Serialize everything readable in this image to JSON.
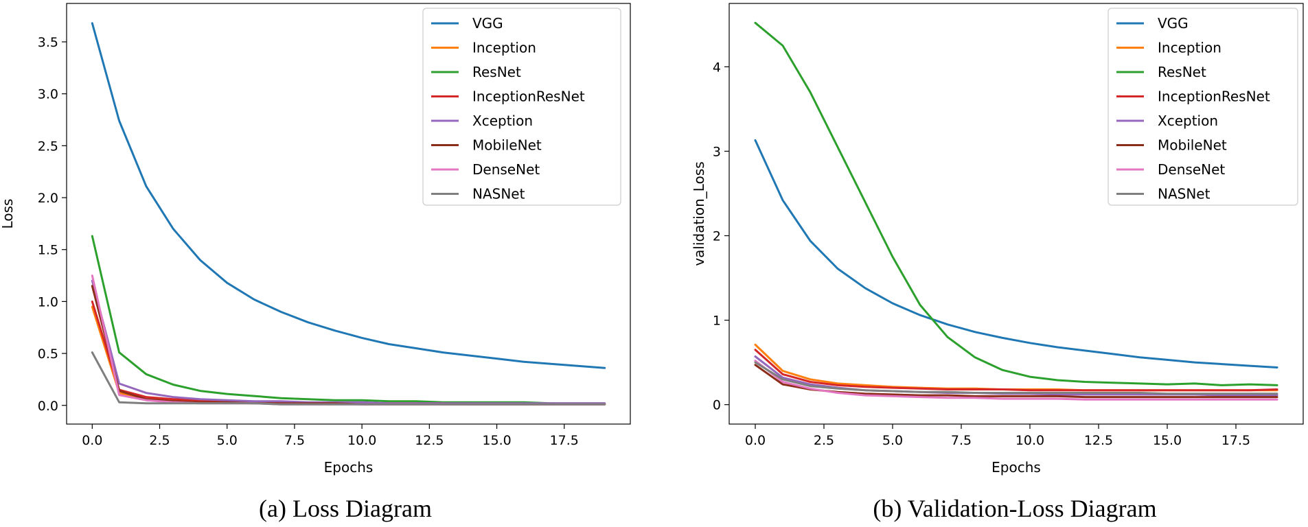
{
  "chart_data": [
    {
      "type": "line",
      "caption": "(a) Loss Diagram",
      "xlabel": "Epochs",
      "ylabel": "Loss",
      "xlim": [
        -0.95,
        19.95
      ],
      "ylim": [
        -0.18,
        3.87
      ],
      "xticks": [
        0.0,
        2.5,
        5.0,
        7.5,
        10.0,
        12.5,
        15.0,
        17.5
      ],
      "xtick_labels": [
        "0.0",
        "2.5",
        "5.0",
        "7.5",
        "10.0",
        "12.5",
        "15.0",
        "17.5"
      ],
      "yticks": [
        0.0,
        0.5,
        1.0,
        1.5,
        2.0,
        2.5,
        3.0,
        3.5
      ],
      "ytick_labels": [
        "0.0",
        "0.5",
        "1.0",
        "1.5",
        "2.0",
        "2.5",
        "3.0",
        "3.5"
      ],
      "grid": false,
      "legend": "top-right",
      "x": [
        0,
        1,
        2,
        3,
        4,
        5,
        6,
        7,
        8,
        9,
        10,
        11,
        12,
        13,
        14,
        15,
        16,
        17,
        18,
        19
      ],
      "series": [
        {
          "name": "VGG",
          "color": "#1f77b4",
          "values": [
            3.68,
            2.74,
            2.11,
            1.7,
            1.4,
            1.18,
            1.02,
            0.9,
            0.8,
            0.72,
            0.65,
            0.59,
            0.55,
            0.51,
            0.48,
            0.45,
            0.42,
            0.4,
            0.38,
            0.36
          ]
        },
        {
          "name": "Inception",
          "color": "#ff7f0e",
          "values": [
            0.95,
            0.12,
            0.06,
            0.05,
            0.04,
            0.03,
            0.03,
            0.02,
            0.02,
            0.02,
            0.02,
            0.02,
            0.02,
            0.01,
            0.01,
            0.01,
            0.01,
            0.01,
            0.01,
            0.01
          ]
        },
        {
          "name": "ResNet",
          "color": "#2ca02c",
          "values": [
            1.63,
            0.51,
            0.3,
            0.2,
            0.14,
            0.11,
            0.09,
            0.07,
            0.06,
            0.05,
            0.05,
            0.04,
            0.04,
            0.03,
            0.03,
            0.03,
            0.03,
            0.02,
            0.02,
            0.02
          ]
        },
        {
          "name": "InceptionResNet",
          "color": "#d62728",
          "values": [
            1.0,
            0.15,
            0.08,
            0.06,
            0.05,
            0.04,
            0.03,
            0.03,
            0.02,
            0.02,
            0.02,
            0.02,
            0.02,
            0.02,
            0.01,
            0.01,
            0.01,
            0.01,
            0.01,
            0.01
          ]
        },
        {
          "name": "Xception",
          "color": "#9467bd",
          "values": [
            1.2,
            0.21,
            0.12,
            0.08,
            0.06,
            0.05,
            0.04,
            0.04,
            0.03,
            0.03,
            0.03,
            0.02,
            0.02,
            0.02,
            0.02,
            0.02,
            0.02,
            0.02,
            0.02,
            0.02
          ]
        },
        {
          "name": "MobileNet",
          "color": "#8c2d19",
          "values": [
            1.15,
            0.14,
            0.06,
            0.04,
            0.03,
            0.03,
            0.02,
            0.02,
            0.02,
            0.02,
            0.01,
            0.01,
            0.01,
            0.01,
            0.01,
            0.01,
            0.01,
            0.01,
            0.01,
            0.01
          ]
        },
        {
          "name": "DenseNet",
          "color": "#e377c2",
          "values": [
            1.25,
            0.1,
            0.05,
            0.03,
            0.02,
            0.02,
            0.02,
            0.01,
            0.01,
            0.01,
            0.01,
            0.01,
            0.01,
            0.01,
            0.01,
            0.01,
            0.01,
            0.01,
            0.01,
            0.01
          ]
        },
        {
          "name": "NASNet",
          "color": "#7f7f7f",
          "values": [
            0.51,
            0.03,
            0.02,
            0.02,
            0.02,
            0.02,
            0.02,
            0.01,
            0.01,
            0.01,
            0.01,
            0.01,
            0.01,
            0.01,
            0.01,
            0.01,
            0.01,
            0.01,
            0.01,
            0.01
          ]
        }
      ]
    },
    {
      "type": "line",
      "caption": "(b) Validation-Loss Diagram",
      "xlabel": "Epochs",
      "ylabel": "validation_Loss",
      "xlim": [
        -0.95,
        19.95
      ],
      "ylim": [
        -0.23,
        4.75
      ],
      "xticks": [
        0.0,
        2.5,
        5.0,
        7.5,
        10.0,
        12.5,
        15.0,
        17.5
      ],
      "xtick_labels": [
        "0.0",
        "2.5",
        "5.0",
        "7.5",
        "10.0",
        "12.5",
        "15.0",
        "17.5"
      ],
      "yticks": [
        0,
        1,
        2,
        3,
        4
      ],
      "ytick_labels": [
        "0",
        "1",
        "2",
        "3",
        "4"
      ],
      "grid": false,
      "legend": "top-right",
      "x": [
        0,
        1,
        2,
        3,
        4,
        5,
        6,
        7,
        8,
        9,
        10,
        11,
        12,
        13,
        14,
        15,
        16,
        17,
        18,
        19
      ],
      "series": [
        {
          "name": "VGG",
          "color": "#1f77b4",
          "values": [
            3.13,
            2.42,
            1.94,
            1.61,
            1.38,
            1.2,
            1.06,
            0.95,
            0.86,
            0.79,
            0.73,
            0.68,
            0.64,
            0.6,
            0.56,
            0.53,
            0.5,
            0.48,
            0.46,
            0.44
          ]
        },
        {
          "name": "Inception",
          "color": "#ff7f0e",
          "values": [
            0.71,
            0.4,
            0.3,
            0.25,
            0.23,
            0.21,
            0.2,
            0.19,
            0.19,
            0.18,
            0.18,
            0.18,
            0.17,
            0.17,
            0.17,
            0.17,
            0.17,
            0.17,
            0.17,
            0.17
          ]
        },
        {
          "name": "ResNet",
          "color": "#2ca02c",
          "values": [
            4.52,
            4.25,
            3.7,
            3.05,
            2.4,
            1.75,
            1.18,
            0.8,
            0.56,
            0.41,
            0.33,
            0.29,
            0.27,
            0.26,
            0.25,
            0.24,
            0.25,
            0.23,
            0.24,
            0.23
          ]
        },
        {
          "name": "InceptionResNet",
          "color": "#d62728",
          "values": [
            0.65,
            0.36,
            0.27,
            0.23,
            0.21,
            0.2,
            0.19,
            0.18,
            0.18,
            0.18,
            0.17,
            0.17,
            0.17,
            0.17,
            0.17,
            0.17,
            0.17,
            0.17,
            0.17,
            0.18
          ]
        },
        {
          "name": "Xception",
          "color": "#9467bd",
          "values": [
            0.57,
            0.32,
            0.24,
            0.2,
            0.17,
            0.16,
            0.15,
            0.14,
            0.14,
            0.13,
            0.13,
            0.12,
            0.12,
            0.12,
            0.12,
            0.12,
            0.12,
            0.11,
            0.11,
            0.11
          ]
        },
        {
          "name": "MobileNet",
          "color": "#8c2d19",
          "values": [
            0.47,
            0.24,
            0.18,
            0.15,
            0.13,
            0.12,
            0.11,
            0.11,
            0.1,
            0.1,
            0.1,
            0.1,
            0.09,
            0.09,
            0.09,
            0.09,
            0.09,
            0.09,
            0.09,
            0.09
          ]
        },
        {
          "name": "DenseNet",
          "color": "#e377c2",
          "values": [
            0.52,
            0.27,
            0.19,
            0.14,
            0.11,
            0.1,
            0.09,
            0.08,
            0.08,
            0.07,
            0.07,
            0.07,
            0.06,
            0.06,
            0.06,
            0.06,
            0.06,
            0.06,
            0.06,
            0.06
          ]
        },
        {
          "name": "NASNet",
          "color": "#7f7f7f",
          "values": [
            0.5,
            0.3,
            0.22,
            0.19,
            0.17,
            0.16,
            0.15,
            0.15,
            0.14,
            0.14,
            0.14,
            0.14,
            0.14,
            0.14,
            0.14,
            0.13,
            0.13,
            0.13,
            0.13,
            0.13
          ]
        }
      ]
    }
  ]
}
